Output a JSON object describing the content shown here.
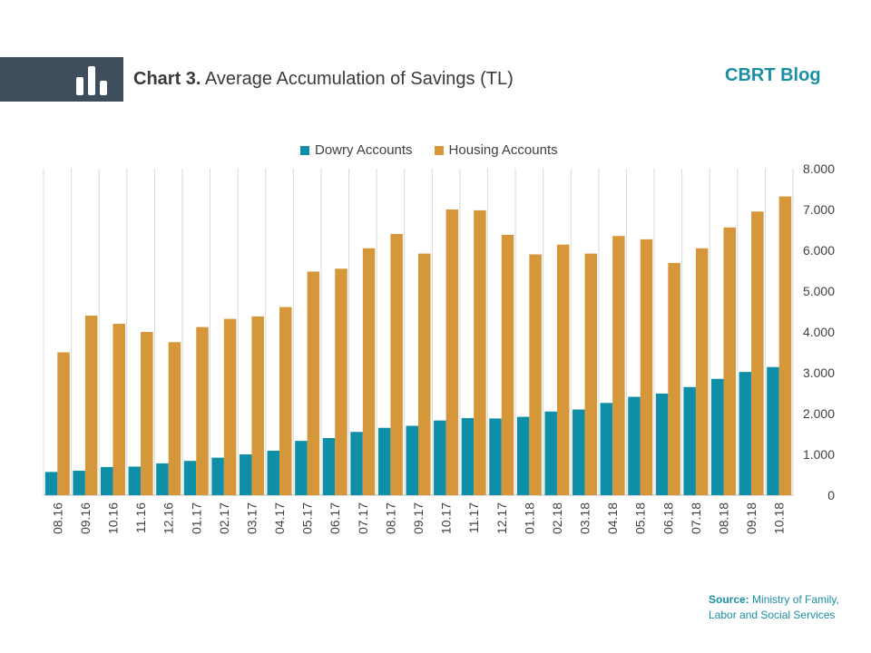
{
  "header": {
    "title_prefix": "Chart 3.",
    "title_rest": "Average Accumulation of Savings (TL)",
    "brand": "CBRT Blog"
  },
  "source": {
    "label": "Source:",
    "line1": "Ministry of Family,",
    "line2": "Labor and Social Services"
  },
  "colors": {
    "dowry": "#0e8fa7",
    "housing": "#d6963a",
    "header_band": "#3f4e5c",
    "brand": "#1a8fa3"
  },
  "icons": {
    "header": "bar-chart-icon"
  },
  "chart_data": {
    "type": "bar",
    "title": "Average Accumulation of Savings (TL)",
    "xlabel": "",
    "ylabel": "",
    "ylim": [
      0,
      8000
    ],
    "yticks": [
      0,
      1000,
      2000,
      3000,
      4000,
      5000,
      6000,
      7000,
      8000
    ],
    "ytick_labels": [
      "0",
      "1.000",
      "2.000",
      "3.000",
      "4.000",
      "5.000",
      "6.000",
      "7.000",
      "8.000"
    ],
    "y_axis_side": "right",
    "grid": "vertical",
    "legend_position": "top",
    "categories": [
      "08.16",
      "09.16",
      "10.16",
      "11.16",
      "12.16",
      "01.17",
      "02.17",
      "03.17",
      "04.17",
      "05.17",
      "06.17",
      "07.17",
      "08.17",
      "09.17",
      "10.17",
      "11.17",
      "12.17",
      "01.18",
      "02.18",
      "03.18",
      "04.18",
      "05.18",
      "06.18",
      "07.18",
      "08.18",
      "09.18",
      "10.18"
    ],
    "series": [
      {
        "name": "Dowry Accounts",
        "color": "#0e8fa7",
        "values": [
          570,
          600,
          690,
          700,
          780,
          840,
          920,
          1000,
          1090,
          1330,
          1400,
          1550,
          1650,
          1700,
          1830,
          1890,
          1880,
          1920,
          2050,
          2100,
          2260,
          2410,
          2490,
          2650,
          2850,
          3020,
          3140
        ]
      },
      {
        "name": "Housing Accounts",
        "color": "#d6963a",
        "values": [
          3500,
          4400,
          4200,
          4000,
          3750,
          4120,
          4320,
          4380,
          4610,
          5480,
          5550,
          6050,
          6400,
          5920,
          7000,
          6980,
          6380,
          5900,
          6140,
          5920,
          6350,
          6270,
          5690,
          6050,
          6560,
          6950,
          7320
        ]
      }
    ]
  }
}
